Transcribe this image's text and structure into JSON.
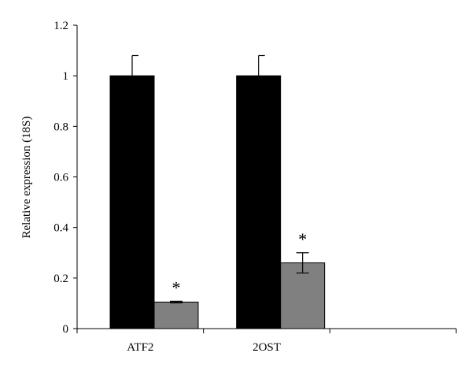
{
  "chart_data": {
    "type": "bar",
    "categories": [
      "ATF2",
      "2OST"
    ],
    "series": [
      {
        "values": [
          1.0,
          1.0
        ],
        "errors": [
          0.08,
          0.08
        ],
        "color": "#000000"
      },
      {
        "values": [
          0.105,
          0.26
        ],
        "errors": [
          0.003,
          0.04
        ],
        "color": "#808080"
      }
    ],
    "annotations": [
      {
        "category": "ATF2",
        "series": 1,
        "text": "*"
      },
      {
        "category": "2OST",
        "series": 1,
        "text": "*"
      }
    ],
    "ylabel": "Relative expression (18S)",
    "xlabel": "",
    "title": "",
    "ylim": [
      0,
      1.2
    ],
    "yticks": [
      0,
      0.2,
      0.4,
      0.6,
      0.8,
      1,
      1.2
    ],
    "ytick_labels": [
      "0",
      "0.2",
      "0.4",
      "0.6",
      "0.8",
      "1",
      "1.2"
    ],
    "grid": false,
    "legend": false
  }
}
